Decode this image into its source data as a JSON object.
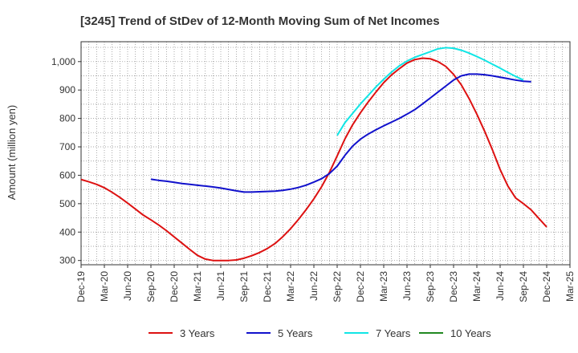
{
  "chart_data": {
    "type": "line",
    "title": "[3245]  Trend of StDev of 12-Month Moving Sum of Net Incomes",
    "ylabel": "Amount (million yen)",
    "xlabel": "",
    "ylim": [
      285,
      1070
    ],
    "yticks": [
      300,
      400,
      500,
      600,
      700,
      800,
      900,
      1000
    ],
    "ytick_labels": [
      "300",
      "400",
      "500",
      "600",
      "700",
      "800",
      "900",
      "1,000"
    ],
    "x_months": [
      "Dec-19",
      "Jan-20",
      "Feb-20",
      "Mar-20",
      "Apr-20",
      "May-20",
      "Jun-20",
      "Jul-20",
      "Aug-20",
      "Sep-20",
      "Oct-20",
      "Nov-20",
      "Dec-20",
      "Jan-21",
      "Feb-21",
      "Mar-21",
      "Apr-21",
      "May-21",
      "Jun-21",
      "Jul-21",
      "Aug-21",
      "Sep-21",
      "Oct-21",
      "Nov-21",
      "Dec-21",
      "Jan-22",
      "Feb-22",
      "Mar-22",
      "Apr-22",
      "May-22",
      "Jun-22",
      "Jul-22",
      "Aug-22",
      "Sep-22",
      "Oct-22",
      "Nov-22",
      "Dec-22",
      "Jan-23",
      "Feb-23",
      "Mar-23",
      "Apr-23",
      "May-23",
      "Jun-23",
      "Jul-23",
      "Aug-23",
      "Sep-23",
      "Oct-23",
      "Nov-23",
      "Dec-23",
      "Jan-24",
      "Feb-24",
      "Mar-24",
      "Apr-24",
      "May-24",
      "Jun-24",
      "Jul-24",
      "Aug-24",
      "Sep-24",
      "Oct-24",
      "Nov-24",
      "Dec-24",
      "Jan-25",
      "Feb-25",
      "Mar-25"
    ],
    "x_tick_labels": [
      "Dec-19",
      "Mar-20",
      "Jun-20",
      "Sep-20",
      "Dec-20",
      "Mar-21",
      "Jun-21",
      "Sep-21",
      "Dec-21",
      "Mar-22",
      "Jun-22",
      "Sep-22",
      "Dec-22",
      "Mar-23",
      "Jun-23",
      "Sep-23",
      "Dec-23",
      "Mar-24",
      "Jun-24",
      "Sep-24",
      "Dec-24",
      "Mar-25"
    ],
    "grid": true,
    "legend_position": "bottom",
    "series": [
      {
        "name": "3 Years",
        "color": "#dd1111",
        "start": "Dec-19",
        "values": [
          585,
          577,
          568,
          556,
          540,
          522,
          502,
          481,
          460,
          443,
          425,
          405,
          383,
          361,
          339,
          318,
          305,
          300,
          300,
          300,
          302,
          308,
          317,
          328,
          342,
          360,
          384,
          412,
          444,
          479,
          517,
          560,
          610,
          668,
          728,
          778,
          820,
          858,
          893,
          926,
          953,
          975,
          995,
          1007,
          1012,
          1010,
          1000,
          983,
          955,
          918,
          870,
          815,
          755,
          690,
          620,
          562,
          520,
          500,
          478,
          448,
          418
        ]
      },
      {
        "name": "5 Years",
        "color": "#1111cc",
        "start": "Sep-20",
        "values": [
          586,
          582,
          579,
          575,
          571,
          568,
          565,
          562,
          559,
          555,
          550,
          545,
          541,
          541,
          542,
          543,
          544,
          547,
          551,
          557,
          565,
          576,
          588,
          606,
          632,
          670,
          703,
          727,
          745,
          760,
          774,
          787,
          800,
          815,
          831,
          851,
          872,
          893,
          914,
          935,
          950,
          956,
          956,
          954,
          950,
          945,
          940,
          935,
          931,
          929
        ]
      },
      {
        "name": "7 Years",
        "color": "#11e5e5",
        "start": "Sep-22",
        "values": [
          740,
          785,
          818,
          851,
          881,
          911,
          938,
          963,
          985,
          1002,
          1015,
          1025,
          1035,
          1045,
          1049,
          1047,
          1040,
          1030,
          1018,
          1005,
          991,
          977,
          962,
          948,
          935
        ]
      },
      {
        "name": "10 Years",
        "color": "#228822",
        "start": "Dec-19",
        "values": []
      }
    ]
  }
}
